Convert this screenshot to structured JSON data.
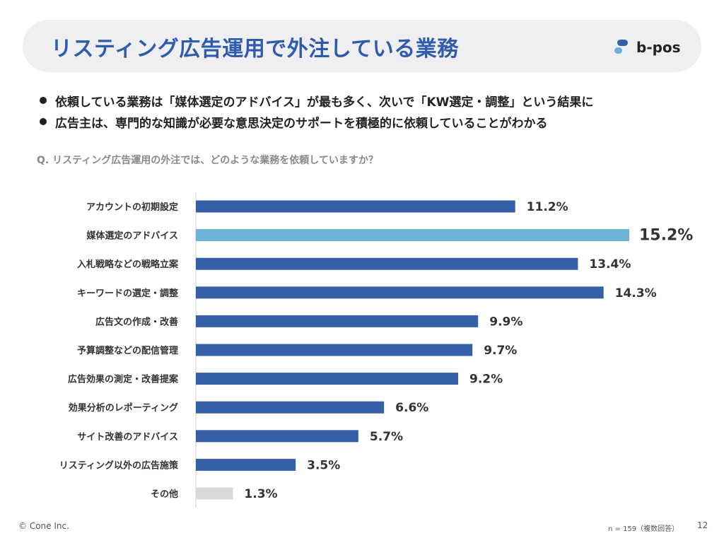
{
  "header": {
    "title": "リスティング広告運用で外注している業務",
    "logo_text": "b-pos"
  },
  "bullets": [
    "依頼している業務は「媒体選定のアドバイス」が最も多く、次いで「KW選定・調整」という結果に",
    "広告主は、専門的な知識が必要な意思決定のサポートを積極的に依頼していることがわかる"
  ],
  "question": "Q. リスティング広告運用の外注では、どのような業務を依頼していますか？",
  "chart_data": {
    "type": "bar",
    "orientation": "horizontal",
    "categories": [
      "アカウントの初期設定",
      "媒体選定のアドバイス",
      "入札戦略などの戦略立案",
      "キーワードの選定・調整",
      "広告文の作成・改善",
      "予算調整などの配信管理",
      "広告効果の測定・改善提案",
      "効果分析のレポーティング",
      "サイト改善のアドバイス",
      "リスティング以外の広告施策",
      "その他"
    ],
    "values": [
      11.2,
      15.2,
      13.4,
      14.3,
      9.9,
      9.7,
      9.2,
      6.6,
      5.7,
      3.5,
      1.3
    ],
    "value_labels": [
      "11.2%",
      "15.2%",
      "13.4%",
      "14.3%",
      "9.9%",
      "9.7%",
      "9.2%",
      "6.6%",
      "5.7%",
      "3.5%",
      "1.3%"
    ],
    "value_unit": "%",
    "xlim": [
      0,
      15.2
    ],
    "colors": {
      "default": "#3560a8",
      "highlight": "#6ab2d6",
      "other": "#d9d9d9"
    },
    "highlight_index": 1,
    "other_index": 10,
    "grid": false,
    "legend": "none"
  },
  "footer": {
    "copyright": "© Cone Inc.",
    "note": "n = 159（複数回答）",
    "page": "12"
  }
}
